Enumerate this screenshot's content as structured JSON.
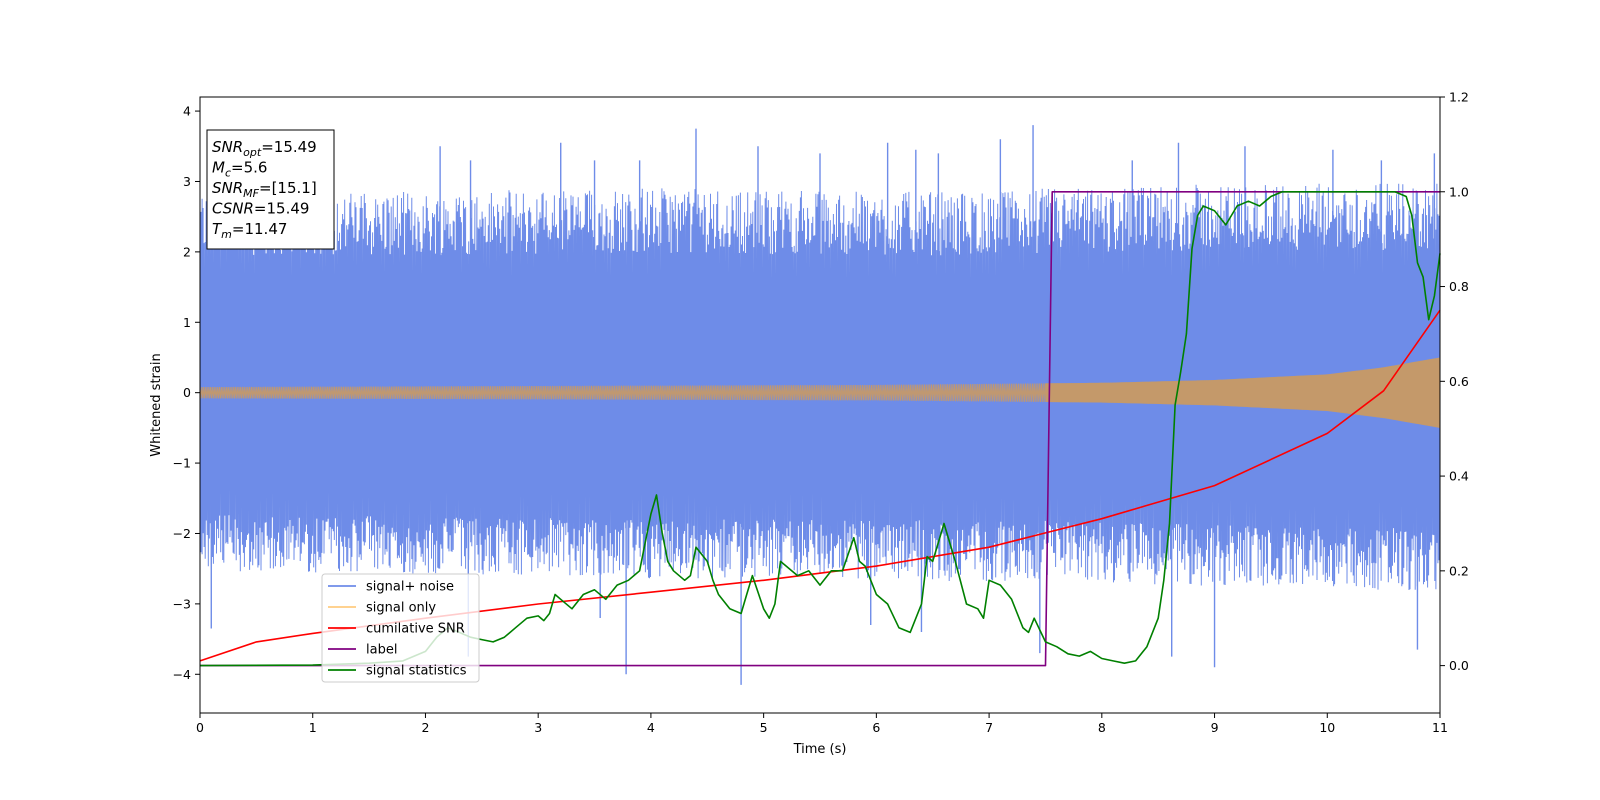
{
  "chart_data": {
    "type": "line",
    "xlabel": "Time (s)",
    "ylabel": "Whitened strain",
    "xlim": [
      0,
      11
    ],
    "ylim": [
      -4.55,
      4.2
    ],
    "y2lim": [
      -0.1,
      1.2
    ],
    "x_ticks": [
      "0",
      "1",
      "2",
      "3",
      "4",
      "5",
      "6",
      "7",
      "8",
      "9",
      "10",
      "11"
    ],
    "y_ticks": [
      "−4",
      "−3",
      "−2",
      "−1",
      "0",
      "1",
      "2",
      "3",
      "4"
    ],
    "y2_ticks": [
      "0.0",
      "0.2",
      "0.4",
      "0.6",
      "0.8",
      "1.0",
      "1.2"
    ],
    "legend_position": "lower-left",
    "grid": false,
    "annotation": {
      "lines": [
        {
          "base": "SNR",
          "sub": "opt",
          "rest": "=15.49"
        },
        {
          "base": "M",
          "sub": "c",
          "rest": "=5.6"
        },
        {
          "base": "SNR",
          "sub": "MF",
          "rest": "=[15.1]"
        },
        {
          "base": "CSNR",
          "sub": "",
          "rest": "=15.49"
        },
        {
          "base": "T",
          "sub": "m",
          "rest": "=11.47"
        }
      ]
    },
    "series": [
      {
        "name": "signal+ noise",
        "axis": "left",
        "color": "#6e8ce8",
        "envelope_x": [
          0,
          2,
          4,
          6,
          7,
          7.5,
          8,
          9,
          10,
          11
        ],
        "envelope_upper": [
          2.6,
          2.6,
          2.65,
          2.6,
          2.6,
          2.65,
          2.65,
          2.7,
          2.7,
          2.7
        ],
        "envelope_lower": [
          -2.3,
          -2.35,
          -2.4,
          -2.4,
          -2.45,
          -2.4,
          -2.45,
          -2.5,
          -2.5,
          -2.6
        ],
        "spikes": [
          {
            "x": 2.13,
            "y": 3.5
          },
          {
            "x": 2.4,
            "y": 3.3
          },
          {
            "x": 3.2,
            "y": 3.55
          },
          {
            "x": 3.5,
            "y": 3.3
          },
          {
            "x": 3.9,
            "y": 3.3
          },
          {
            "x": 4.4,
            "y": 3.75
          },
          {
            "x": 4.95,
            "y": 3.5
          },
          {
            "x": 5.5,
            "y": 3.4
          },
          {
            "x": 6.1,
            "y": 3.55
          },
          {
            "x": 6.35,
            "y": 3.45
          },
          {
            "x": 6.55,
            "y": 3.4
          },
          {
            "x": 7.1,
            "y": 3.6
          },
          {
            "x": 7.39,
            "y": 3.8
          },
          {
            "x": 8.27,
            "y": 3.3
          },
          {
            "x": 8.68,
            "y": 3.55
          },
          {
            "x": 9.27,
            "y": 3.5
          },
          {
            "x": 10.05,
            "y": 3.45
          },
          {
            "x": 10.48,
            "y": 3.3
          },
          {
            "x": 10.95,
            "y": 3.4
          },
          {
            "x": 0.1,
            "y": -3.35
          },
          {
            "x": 2.38,
            "y": -3.75
          },
          {
            "x": 3.78,
            "y": -4.0
          },
          {
            "x": 4.8,
            "y": -4.15
          },
          {
            "x": 3.55,
            "y": -3.2
          },
          {
            "x": 5.95,
            "y": -3.3
          },
          {
            "x": 8.62,
            "y": -3.75
          },
          {
            "x": 9.0,
            "y": -3.9
          },
          {
            "x": 10.8,
            "y": -3.65
          },
          {
            "x": 7.45,
            "y": -3.7
          },
          {
            "x": 6.4,
            "y": -3.4
          }
        ]
      },
      {
        "name": "signal only",
        "axis": "left",
        "color": "#ffcc80",
        "amplitude_x": [
          0,
          2,
          4,
          6,
          8,
          9,
          10,
          10.5,
          11
        ],
        "amplitude_y": [
          0.08,
          0.09,
          0.1,
          0.11,
          0.14,
          0.18,
          0.26,
          0.36,
          0.5
        ]
      },
      {
        "name": "cumilative SNR",
        "axis": "right",
        "color": "#ff0000",
        "x": [
          0,
          0.5,
          1,
          2,
          3,
          4,
          5,
          6,
          7,
          7.5,
          8,
          9,
          10,
          10.5,
          11
        ],
        "y": [
          0.01,
          0.05,
          0.068,
          0.1,
          0.13,
          0.155,
          0.18,
          0.21,
          0.25,
          0.28,
          0.31,
          0.38,
          0.49,
          0.58,
          0.75
        ]
      },
      {
        "name": "label",
        "axis": "right",
        "color": "#800080",
        "x": [
          0,
          7.5,
          7.56,
          11
        ],
        "y": [
          0,
          0,
          1,
          1
        ]
      },
      {
        "name": "signal statistics",
        "axis": "right",
        "color": "#008000",
        "x": [
          0,
          1,
          1.5,
          1.8,
          2.0,
          2.1,
          2.2,
          2.3,
          2.4,
          2.5,
          2.6,
          2.7,
          2.8,
          2.9,
          3.0,
          3.05,
          3.1,
          3.15,
          3.2,
          3.3,
          3.4,
          3.5,
          3.6,
          3.7,
          3.8,
          3.9,
          4.0,
          4.05,
          4.1,
          4.15,
          4.2,
          4.3,
          4.35,
          4.4,
          4.5,
          4.55,
          4.6,
          4.7,
          4.8,
          4.85,
          4.9,
          5.0,
          5.05,
          5.1,
          5.15,
          5.2,
          5.3,
          5.4,
          5.5,
          5.6,
          5.7,
          5.8,
          5.85,
          5.9,
          6.0,
          6.1,
          6.2,
          6.3,
          6.4,
          6.45,
          6.5,
          6.55,
          6.6,
          6.7,
          6.8,
          6.9,
          6.95,
          7.0,
          7.1,
          7.2,
          7.3,
          7.35,
          7.4,
          7.5,
          7.6,
          7.7,
          7.8,
          7.9,
          8.0,
          8.1,
          8.2,
          8.3,
          8.4,
          8.5,
          8.55,
          8.6,
          8.65,
          8.7,
          8.75,
          8.8,
          8.85,
          8.9,
          9.0,
          9.1,
          9.2,
          9.3,
          9.4,
          9.5,
          9.6,
          9.8,
          10.0,
          10.2,
          10.4,
          10.6,
          10.7,
          10.75,
          10.8,
          10.85,
          10.9,
          10.95,
          11.0
        ],
        "y": [
          0,
          0.001,
          0.005,
          0.01,
          0.03,
          0.06,
          0.08,
          0.07,
          0.06,
          0.055,
          0.05,
          0.06,
          0.08,
          0.1,
          0.105,
          0.095,
          0.11,
          0.15,
          0.14,
          0.12,
          0.15,
          0.16,
          0.14,
          0.17,
          0.18,
          0.2,
          0.32,
          0.36,
          0.28,
          0.22,
          0.2,
          0.18,
          0.19,
          0.25,
          0.22,
          0.18,
          0.15,
          0.12,
          0.11,
          0.15,
          0.19,
          0.12,
          0.1,
          0.13,
          0.22,
          0.21,
          0.19,
          0.2,
          0.17,
          0.2,
          0.2,
          0.27,
          0.22,
          0.21,
          0.15,
          0.13,
          0.08,
          0.07,
          0.13,
          0.23,
          0.22,
          0.26,
          0.3,
          0.22,
          0.13,
          0.12,
          0.1,
          0.18,
          0.17,
          0.14,
          0.08,
          0.07,
          0.1,
          0.05,
          0.04,
          0.025,
          0.02,
          0.03,
          0.015,
          0.01,
          0.005,
          0.01,
          0.04,
          0.1,
          0.18,
          0.3,
          0.55,
          0.62,
          0.7,
          0.88,
          0.95,
          0.97,
          0.96,
          0.93,
          0.97,
          0.98,
          0.97,
          0.99,
          1.0,
          1.0,
          1.0,
          1.0,
          1.0,
          1.0,
          0.99,
          0.95,
          0.85,
          0.82,
          0.73,
          0.78,
          0.87
        ]
      }
    ]
  }
}
